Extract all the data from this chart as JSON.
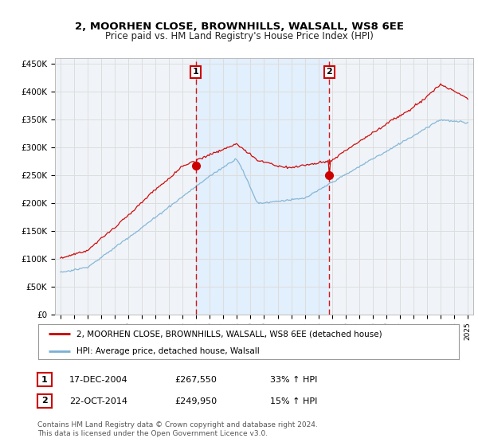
{
  "title1": "2, MOORHEN CLOSE, BROWNHILLS, WALSALL, WS8 6EE",
  "title2": "Price paid vs. HM Land Registry's House Price Index (HPI)",
  "ylabel_ticks": [
    "£0",
    "£50K",
    "£100K",
    "£150K",
    "£200K",
    "£250K",
    "£300K",
    "£350K",
    "£400K",
    "£450K"
  ],
  "ytick_values": [
    0,
    50000,
    100000,
    150000,
    200000,
    250000,
    300000,
    350000,
    400000,
    450000
  ],
  "ylim": [
    0,
    460000
  ],
  "sale1_year": 2004.96,
  "sale1_price": 267550,
  "sale2_year": 2014.81,
  "sale2_price": 249950,
  "legend_line1": "2, MOORHEN CLOSE, BROWNHILLS, WALSALL, WS8 6EE (detached house)",
  "legend_line2": "HPI: Average price, detached house, Walsall",
  "sale1_date_str": "17-DEC-2004",
  "sale1_price_str": "£267,550",
  "sale1_hpi_str": "33% ↑ HPI",
  "sale2_date_str": "22-OCT-2014",
  "sale2_price_str": "£249,950",
  "sale2_hpi_str": "15% ↑ HPI",
  "footer": "Contains HM Land Registry data © Crown copyright and database right 2024.\nThis data is licensed under the Open Government Licence v3.0.",
  "line_color_red": "#cc0000",
  "line_color_blue": "#7ab0d4",
  "shade_color": "#ddeeff",
  "grid_color": "#dddddd",
  "bg_color": "#f0f4f8",
  "box_color": "#cc0000",
  "vline_color": "#cc0000"
}
